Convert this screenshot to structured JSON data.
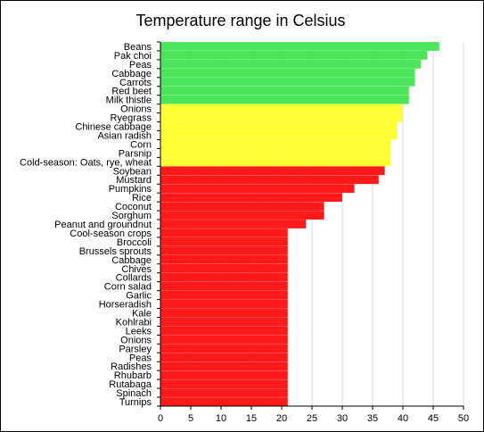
{
  "chart_data": {
    "type": "bar",
    "orientation": "horizontal",
    "title": "Temperature range in Celsius",
    "xlabel": "",
    "ylabel": "",
    "xlim": [
      0,
      50
    ],
    "x_ticks": [
      "0",
      "5",
      "10",
      "15",
      "20",
      "25",
      "30",
      "35",
      "40",
      "45",
      "50"
    ],
    "grid": "vertical",
    "legend": "none",
    "colors": {
      "green": "#4CE55A",
      "yellow": "#FFFF33",
      "red": "#FF1A1A",
      "grid": "#D9D9D9"
    },
    "categories": [
      "Beans",
      "Pak choi",
      "Peas",
      "Cabbage",
      "Carrots",
      "Red beet",
      "Milk thistle",
      "Onions",
      "Ryegrass",
      "Chinese cabbage",
      "Asian radish",
      "Corn",
      "Parsnip",
      "Cold-season: Oats, rye, wheat",
      "Soybean",
      "Mustard",
      "Pumpkins",
      "Rice",
      "Coconut",
      "Sorghum",
      "Peanut and groundnut",
      "Cool-season crops",
      "Broccoli",
      "Brussels sprouts",
      "Cabbage",
      "Chives",
      "Collards",
      "Corn salad",
      "Garlic",
      "Horseradish",
      "Kale",
      "Kohlrabi",
      "Leeks",
      "Onions",
      "Parsley",
      "Peas",
      "Radishes",
      "Rhubarb",
      "Rutabaga",
      "Spinach",
      "Turnips"
    ],
    "values": [
      46,
      44,
      43,
      42,
      42,
      41,
      41,
      40,
      40,
      39,
      39,
      38,
      38,
      38,
      37,
      36,
      32,
      30,
      27,
      27,
      24,
      21,
      21,
      21,
      21,
      21,
      21,
      21,
      21,
      21,
      21,
      21,
      21,
      21,
      21,
      21,
      21,
      21,
      21,
      21,
      21
    ],
    "bar_colors": [
      "green",
      "green",
      "green",
      "green",
      "green",
      "green",
      "green",
      "yellow",
      "yellow",
      "yellow",
      "yellow",
      "yellow",
      "yellow",
      "yellow",
      "red",
      "red",
      "red",
      "red",
      "red",
      "red",
      "red",
      "red",
      "red",
      "red",
      "red",
      "red",
      "red",
      "red",
      "red",
      "red",
      "red",
      "red",
      "red",
      "red",
      "red",
      "red",
      "red",
      "red",
      "red",
      "red",
      "red"
    ]
  }
}
